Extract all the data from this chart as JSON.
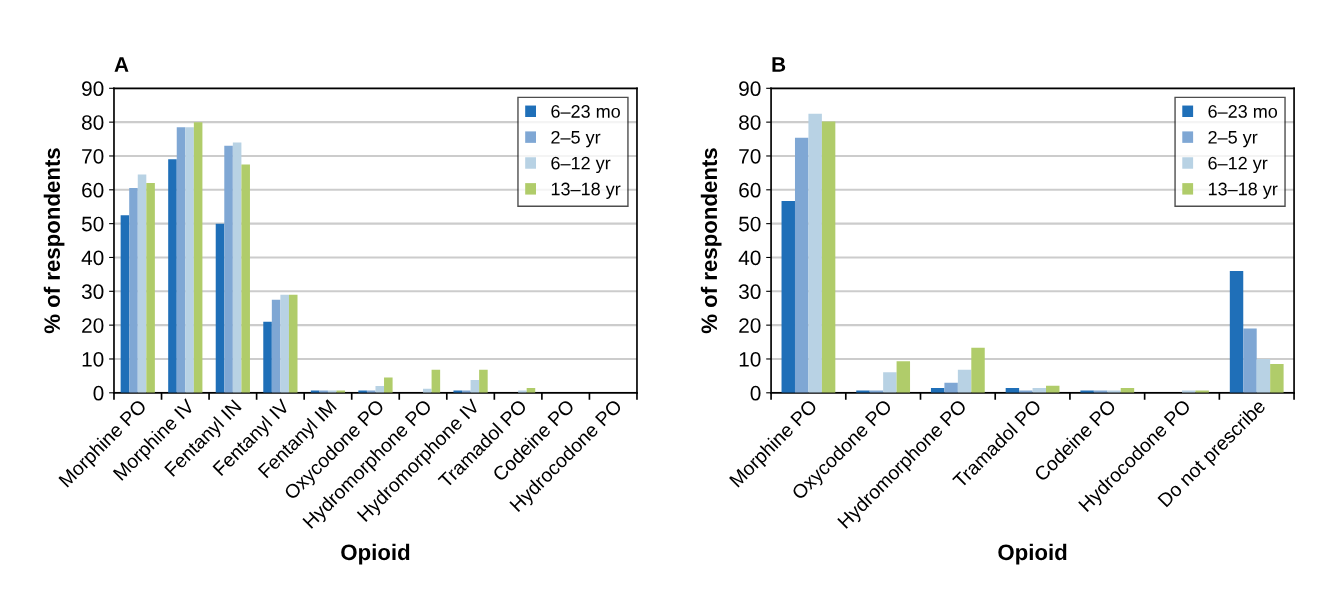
{
  "chart_data": [
    {
      "type": "bar",
      "title": "A",
      "xlabel": "Opioid",
      "ylabel": "% of respondents",
      "categories": [
        "Morphine PO",
        "Morphine IV",
        "Fentanyl IN",
        "Fentanyl IV",
        "Fentanyl IM",
        "Oxycodone PO",
        "Hydromorphone PO",
        "Hydromorphone IV",
        "Tramadol PO",
        "Codeine PO",
        "Hydrocodone PO"
      ],
      "series": [
        {
          "name": "6–23 mo",
          "color": "#1f6fb8",
          "values": [
            52.5,
            69,
            50,
            21,
            0.7,
            0.7,
            0,
            0.7,
            0,
            0,
            0
          ]
        },
        {
          "name": "2–5 yr",
          "color": "#7fa7d4",
          "values": [
            60.5,
            78.5,
            73,
            27.5,
            0.7,
            0.7,
            0,
            0.7,
            0,
            0,
            0
          ]
        },
        {
          "name": "6–12 yr",
          "color": "#b8d2e4",
          "values": [
            64.5,
            78.5,
            74,
            29,
            0.7,
            2,
            1.2,
            3.8,
            0.7,
            0,
            0
          ]
        },
        {
          "name": "13–18 yr",
          "color": "#b0cc6a",
          "values": [
            62,
            80,
            67.5,
            29,
            0.7,
            4.5,
            6.8,
            6.8,
            1.4,
            0,
            0
          ]
        }
      ],
      "ylim": [
        0,
        90
      ],
      "yticks": [
        0,
        10,
        20,
        30,
        40,
        50,
        60,
        70,
        80,
        90
      ],
      "grid": "y",
      "legend": "top right"
    },
    {
      "type": "bar",
      "title": "B",
      "xlabel": "Opioid",
      "ylabel": "% of respondents",
      "categories": [
        "Morphine PO",
        "Oxycodone PO",
        "Hydromorphone PO",
        "Tramadol PO",
        "Codeine PO",
        "Hydrocodone PO",
        "Do not prescribe"
      ],
      "series": [
        {
          "name": "6–23 mo",
          "color": "#1f6fb8",
          "values": [
            56.7,
            0.7,
            1.4,
            1.4,
            0.7,
            0,
            36
          ]
        },
        {
          "name": "2–5 yr",
          "color": "#7fa7d4",
          "values": [
            75.4,
            0.7,
            3,
            0.7,
            0.7,
            0,
            19
          ]
        },
        {
          "name": "6–12 yr",
          "color": "#b8d2e4",
          "values": [
            82.5,
            6.1,
            6.8,
            1.4,
            0.7,
            0.7,
            10
          ]
        },
        {
          "name": "13–18 yr",
          "color": "#b0cc6a",
          "values": [
            80.2,
            9.3,
            13.3,
            2.1,
            1.4,
            0.7,
            8.5
          ]
        }
      ],
      "ylim": [
        0,
        90
      ],
      "yticks": [
        0,
        10,
        20,
        30,
        40,
        50,
        60,
        70,
        80,
        90
      ],
      "grid": "y",
      "legend": "top right"
    }
  ]
}
